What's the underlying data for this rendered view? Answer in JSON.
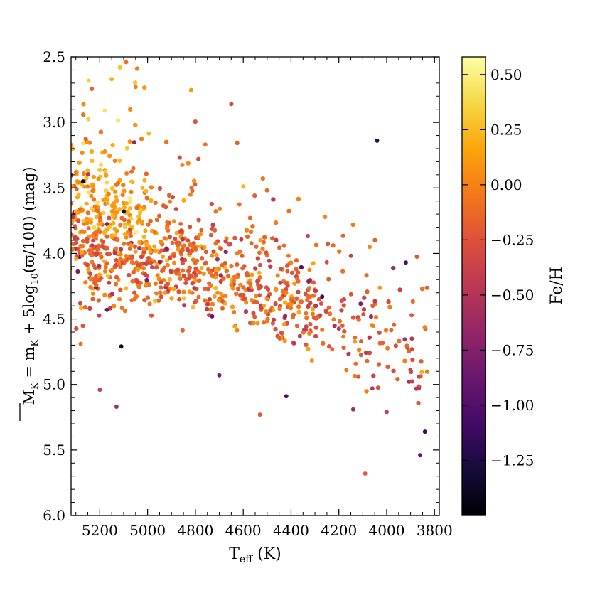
{
  "chart_data": {
    "type": "scatter",
    "title": "",
    "xlabel_main": "T",
    "xlabel_sub": "eff",
    "xlabel_unit": " (K)",
    "ylabel": "M̅K = mK + 5log10(ϖ/100) (mag)",
    "ylabel_parts": {
      "m_bar": "M",
      "m_sub": "K",
      "eq": " = m",
      "mk_sub": "K",
      "plus": " + 5log",
      "log_sub": "10",
      "rest": "(ϖ/100) (mag)"
    },
    "xlim": [
      5320,
      3780
    ],
    "ylim": [
      6.0,
      2.5
    ],
    "x_reversed": true,
    "y_reversed": true,
    "x_ticks": [
      5200,
      5000,
      4800,
      4600,
      4400,
      4200,
      4000,
      3800
    ],
    "x_tick_labels": [
      "5200",
      "5000",
      "4800",
      "4600",
      "4400",
      "4200",
      "4000",
      "3800"
    ],
    "y_ticks": [
      2.5,
      3.0,
      3.5,
      4.0,
      4.5,
      5.0,
      5.5,
      6.0
    ],
    "y_tick_labels": [
      "2.5",
      "3.0",
      "3.5",
      "4.0",
      "4.5",
      "5.0",
      "5.5",
      "6.0"
    ],
    "grid": false,
    "colorbar": {
      "label": "Fe/H",
      "range": [
        -1.5,
        0.58
      ],
      "ticks": [
        0.5,
        0.25,
        0.0,
        -0.25,
        -0.5,
        -0.75,
        -1.0,
        -1.25
      ],
      "tick_labels": [
        "0.50",
        "0.25",
        "0.00",
        "−0.25",
        "−0.50",
        "−0.75",
        "−1.00",
        "−1.25"
      ],
      "colormap": "inferno",
      "stops": [
        "#000004",
        "#160b39",
        "#420a68",
        "#6a176e",
        "#932667",
        "#bc3754",
        "#dd513a",
        "#f37819",
        "#fca50a",
        "#f6d746",
        "#fcffa4"
      ]
    },
    "trend": {
      "x": [
        5300,
        5200,
        5100,
        5000,
        4900,
        4800,
        4700,
        4600,
        4500,
        4400,
        4300,
        4200,
        4100,
        4000,
        3900,
        3830
      ],
      "y_center": [
        3.78,
        3.88,
        3.95,
        4.02,
        4.08,
        4.13,
        4.19,
        4.26,
        4.32,
        4.4,
        4.48,
        4.56,
        4.64,
        4.72,
        4.8,
        4.86
      ],
      "density": [
        2.0,
        2.3,
        2.0,
        1.6,
        1.4,
        1.3,
        1.2,
        1.05,
        0.95,
        0.85,
        0.7,
        0.55,
        0.45,
        0.35,
        0.3,
        0.2
      ]
    },
    "points": [
      {
        "x": 5090,
        "y": 2.54,
        "feh": -0.1
      },
      {
        "x": 4040,
        "y": 3.14,
        "feh": -1.2
      },
      {
        "x": 5200,
        "y": 5.04,
        "feh": -0.4
      },
      {
        "x": 5130,
        "y": 5.17,
        "feh": -0.6
      },
      {
        "x": 5110,
        "y": 4.71,
        "feh": -1.35
      },
      {
        "x": 4700,
        "y": 4.93,
        "feh": -0.8
      },
      {
        "x": 4420,
        "y": 5.09,
        "feh": -1.0
      },
      {
        "x": 4530,
        "y": 5.23,
        "feh": -0.2
      },
      {
        "x": 4090,
        "y": 5.68,
        "feh": -0.2
      },
      {
        "x": 3860,
        "y": 5.54,
        "feh": -0.9
      },
      {
        "x": 3840,
        "y": 5.36,
        "feh": -1.1
      },
      {
        "x": 3920,
        "y": 4.07,
        "feh": -1.0
      },
      {
        "x": 5270,
        "y": 3.45,
        "feh": -1.4
      },
      {
        "x": 5100,
        "y": 3.68,
        "feh": -1.3
      },
      {
        "x": 4650,
        "y": 2.86,
        "feh": -0.3
      },
      {
        "x": 5280,
        "y": 4.69,
        "feh": -0.1
      },
      {
        "x": 5170,
        "y": 4.43,
        "feh": -0.9
      },
      {
        "x": 4060,
        "y": 5.03,
        "feh": -0.5
      },
      {
        "x": 4000,
        "y": 5.21,
        "feh": -0.4
      },
      {
        "x": 4140,
        "y": 5.19,
        "feh": -0.6
      },
      {
        "x": 4270,
        "y": 4.33,
        "feh": -1.1
      },
      {
        "x": 5050,
        "y": 2.73,
        "feh": 0.0
      },
      {
        "x": 5150,
        "y": 2.67,
        "feh": 0.2
      },
      {
        "x": 4730,
        "y": 4.48,
        "feh": -0.9
      }
    ]
  }
}
